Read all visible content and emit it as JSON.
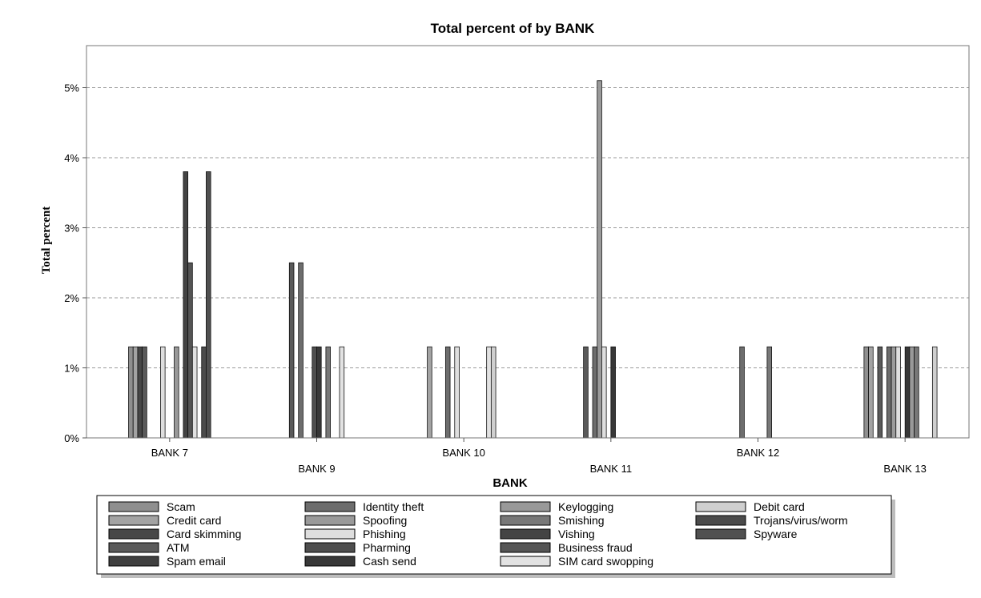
{
  "chart_data": {
    "type": "bar",
    "title": "Total percent of  by BANK",
    "xlabel": "BANK",
    "ylabel": "Total percent",
    "ylim": [
      0,
      5.6
    ],
    "yticks": [
      {
        "value": 0,
        "label": "0%"
      },
      {
        "value": 1,
        "label": "1%"
      },
      {
        "value": 2,
        "label": "2%"
      },
      {
        "value": 3,
        "label": "3%"
      },
      {
        "value": 4,
        "label": "4%"
      },
      {
        "value": 5,
        "label": "5%"
      }
    ],
    "grid": true,
    "legend_position": "bottom",
    "categories": [
      "BANK 7",
      "BANK 9",
      "BANK 10",
      "BANK 11",
      "BANK 12",
      "BANK 13"
    ],
    "series": [
      {
        "name": "Scam",
        "color": "#8f8f8f",
        "values": [
          1.3,
          0,
          0,
          0,
          0,
          1.3
        ]
      },
      {
        "name": "Credit card",
        "color": "#a3a3a3",
        "values": [
          1.3,
          0,
          1.3,
          0,
          0,
          1.3
        ]
      },
      {
        "name": "Card skimming",
        "color": "#474747",
        "values": [
          1.3,
          0,
          0,
          0,
          0,
          0
        ]
      },
      {
        "name": "ATM",
        "color": "#5a5a5a",
        "values": [
          1.3,
          2.5,
          0,
          1.3,
          0,
          1.3
        ]
      },
      {
        "name": "Spam email",
        "color": "#3f3f3f",
        "values": [
          0,
          0,
          0,
          0,
          0,
          0
        ]
      },
      {
        "name": "Identity theft",
        "color": "#6d6d6d",
        "values": [
          0,
          2.5,
          1.3,
          1.3,
          1.3,
          1.3
        ]
      },
      {
        "name": "Spoofing",
        "color": "#9a9a9a",
        "values": [
          0,
          0,
          0,
          5.1,
          0,
          1.3
        ]
      },
      {
        "name": "Phishing",
        "color": "#dedede",
        "values": [
          1.3,
          0,
          1.3,
          1.3,
          0,
          1.3
        ]
      },
      {
        "name": "Pharming",
        "color": "#4e4e4e",
        "values": [
          0,
          1.3,
          0,
          0,
          0,
          0
        ]
      },
      {
        "name": "Cash send",
        "color": "#383838",
        "values": [
          0,
          1.3,
          0,
          1.3,
          0,
          1.3
        ]
      },
      {
        "name": "Keylogging",
        "color": "#999999",
        "values": [
          1.3,
          0,
          0,
          0,
          0,
          1.3
        ]
      },
      {
        "name": "Smishing",
        "color": "#787878",
        "values": [
          0,
          1.3,
          0,
          0,
          1.3,
          1.3
        ]
      },
      {
        "name": "Vishing",
        "color": "#444444",
        "values": [
          3.8,
          0,
          0,
          0,
          0,
          0
        ]
      },
      {
        "name": "Business fraud",
        "color": "#555555",
        "values": [
          2.5,
          0,
          0,
          0,
          0,
          0
        ]
      },
      {
        "name": "SIM card swopping",
        "color": "#e2e2e2",
        "values": [
          1.3,
          1.3,
          1.3,
          0,
          0,
          0
        ]
      },
      {
        "name": "Debit card",
        "color": "#cfcfcf",
        "values": [
          0,
          0,
          1.3,
          0,
          0,
          1.3
        ]
      },
      {
        "name": "Trojans/virus/worm",
        "color": "#4b4b4b",
        "values": [
          1.3,
          0,
          0,
          0,
          0,
          0
        ]
      },
      {
        "name": "Spyware",
        "color": "#505050",
        "values": [
          3.8,
          0,
          0,
          0,
          0,
          0
        ]
      }
    ]
  }
}
